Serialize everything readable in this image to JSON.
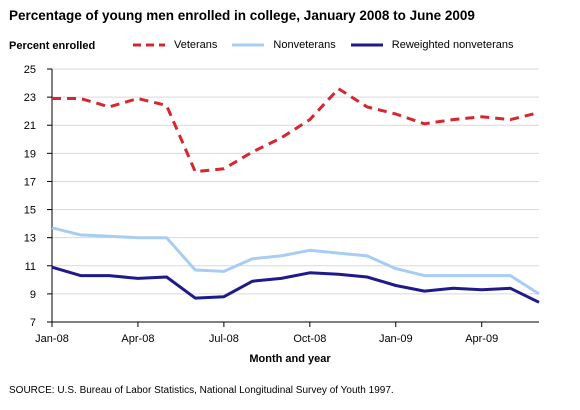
{
  "title": "Percentage of young men enrolled in college, January 2008 to June 2009",
  "source": "SOURCE:  U.S. Bureau of Labor Statistics, National Longitudinal Survey of Youth 1997.",
  "chart_data": {
    "type": "line",
    "title": "Percentage of young men enrolled in college, January 2008 to June 2009",
    "ylabel": "Percent enrolled",
    "xlabel": "Month and year",
    "ylim": [
      7,
      25
    ],
    "yticks": [
      7,
      9,
      11,
      13,
      15,
      17,
      19,
      21,
      23,
      25
    ],
    "x": [
      "Jan-08",
      "Feb-08",
      "Mar-08",
      "Apr-08",
      "May-08",
      "Jun-08",
      "Jul-08",
      "Aug-08",
      "Sep-08",
      "Oct-08",
      "Nov-08",
      "Dec-08",
      "Jan-09",
      "Feb-09",
      "Mar-09",
      "Apr-09",
      "May-09",
      "Jun-09"
    ],
    "xtick_labels": [
      "Jan-08",
      "Apr-08",
      "Jul-08",
      "Oct-08",
      "Jan-09",
      "Apr-09"
    ],
    "xtick_indices": [
      0,
      3,
      6,
      9,
      12,
      15
    ],
    "grid": "horizontal",
    "legend_position": "top",
    "series": [
      {
        "name": "Veterans",
        "color": "#d6262f",
        "style": "dashed",
        "values": [
          22.9,
          22.9,
          22.3,
          22.9,
          22.4,
          17.7,
          17.9,
          19.1,
          20.1,
          21.4,
          23.6,
          22.3,
          21.8,
          21.1,
          21.4,
          21.6,
          21.4,
          21.9
        ]
      },
      {
        "name": "Nonveterans",
        "color": "#a9cdf2",
        "style": "solid",
        "values": [
          13.7,
          13.2,
          13.1,
          13.0,
          13.0,
          10.7,
          10.6,
          11.5,
          11.7,
          12.1,
          11.9,
          11.7,
          10.8,
          10.3,
          10.3,
          10.3,
          10.3,
          9.0
        ]
      },
      {
        "name": "Reweighted nonveterans",
        "color": "#1f1a8c",
        "style": "solid",
        "values": [
          10.9,
          10.3,
          10.3,
          10.1,
          10.2,
          8.7,
          8.8,
          9.9,
          10.1,
          10.5,
          10.4,
          10.2,
          9.6,
          9.2,
          9.4,
          9.3,
          9.4,
          8.4
        ]
      }
    ]
  }
}
